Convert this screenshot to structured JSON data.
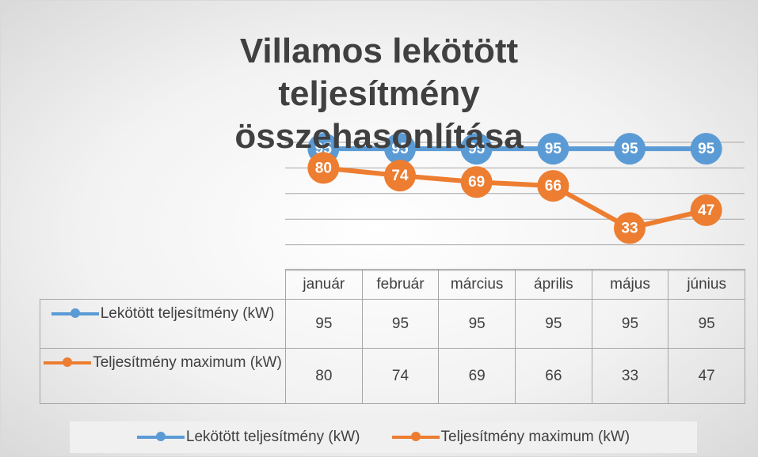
{
  "chart_data": {
    "type": "line",
    "title": "Villamos lekötött teljesítmény összehasonlítása",
    "categories": [
      "január",
      "február",
      "március",
      "április",
      "május",
      "június"
    ],
    "series": [
      {
        "name": "Lekötött teljesítmény (kW)",
        "color": "#5b9bd5",
        "values": [
          95,
          95,
          95,
          95,
          95,
          95
        ]
      },
      {
        "name": "Teljesítmény maximum (kW)",
        "color": "#ed7d31",
        "values": [
          80,
          74,
          69,
          66,
          33,
          47
        ]
      }
    ],
    "ylim": [
      0,
      100
    ],
    "yticks": [
      0,
      20,
      40,
      60,
      80,
      100
    ],
    "grid": true,
    "legend": "bottom"
  }
}
